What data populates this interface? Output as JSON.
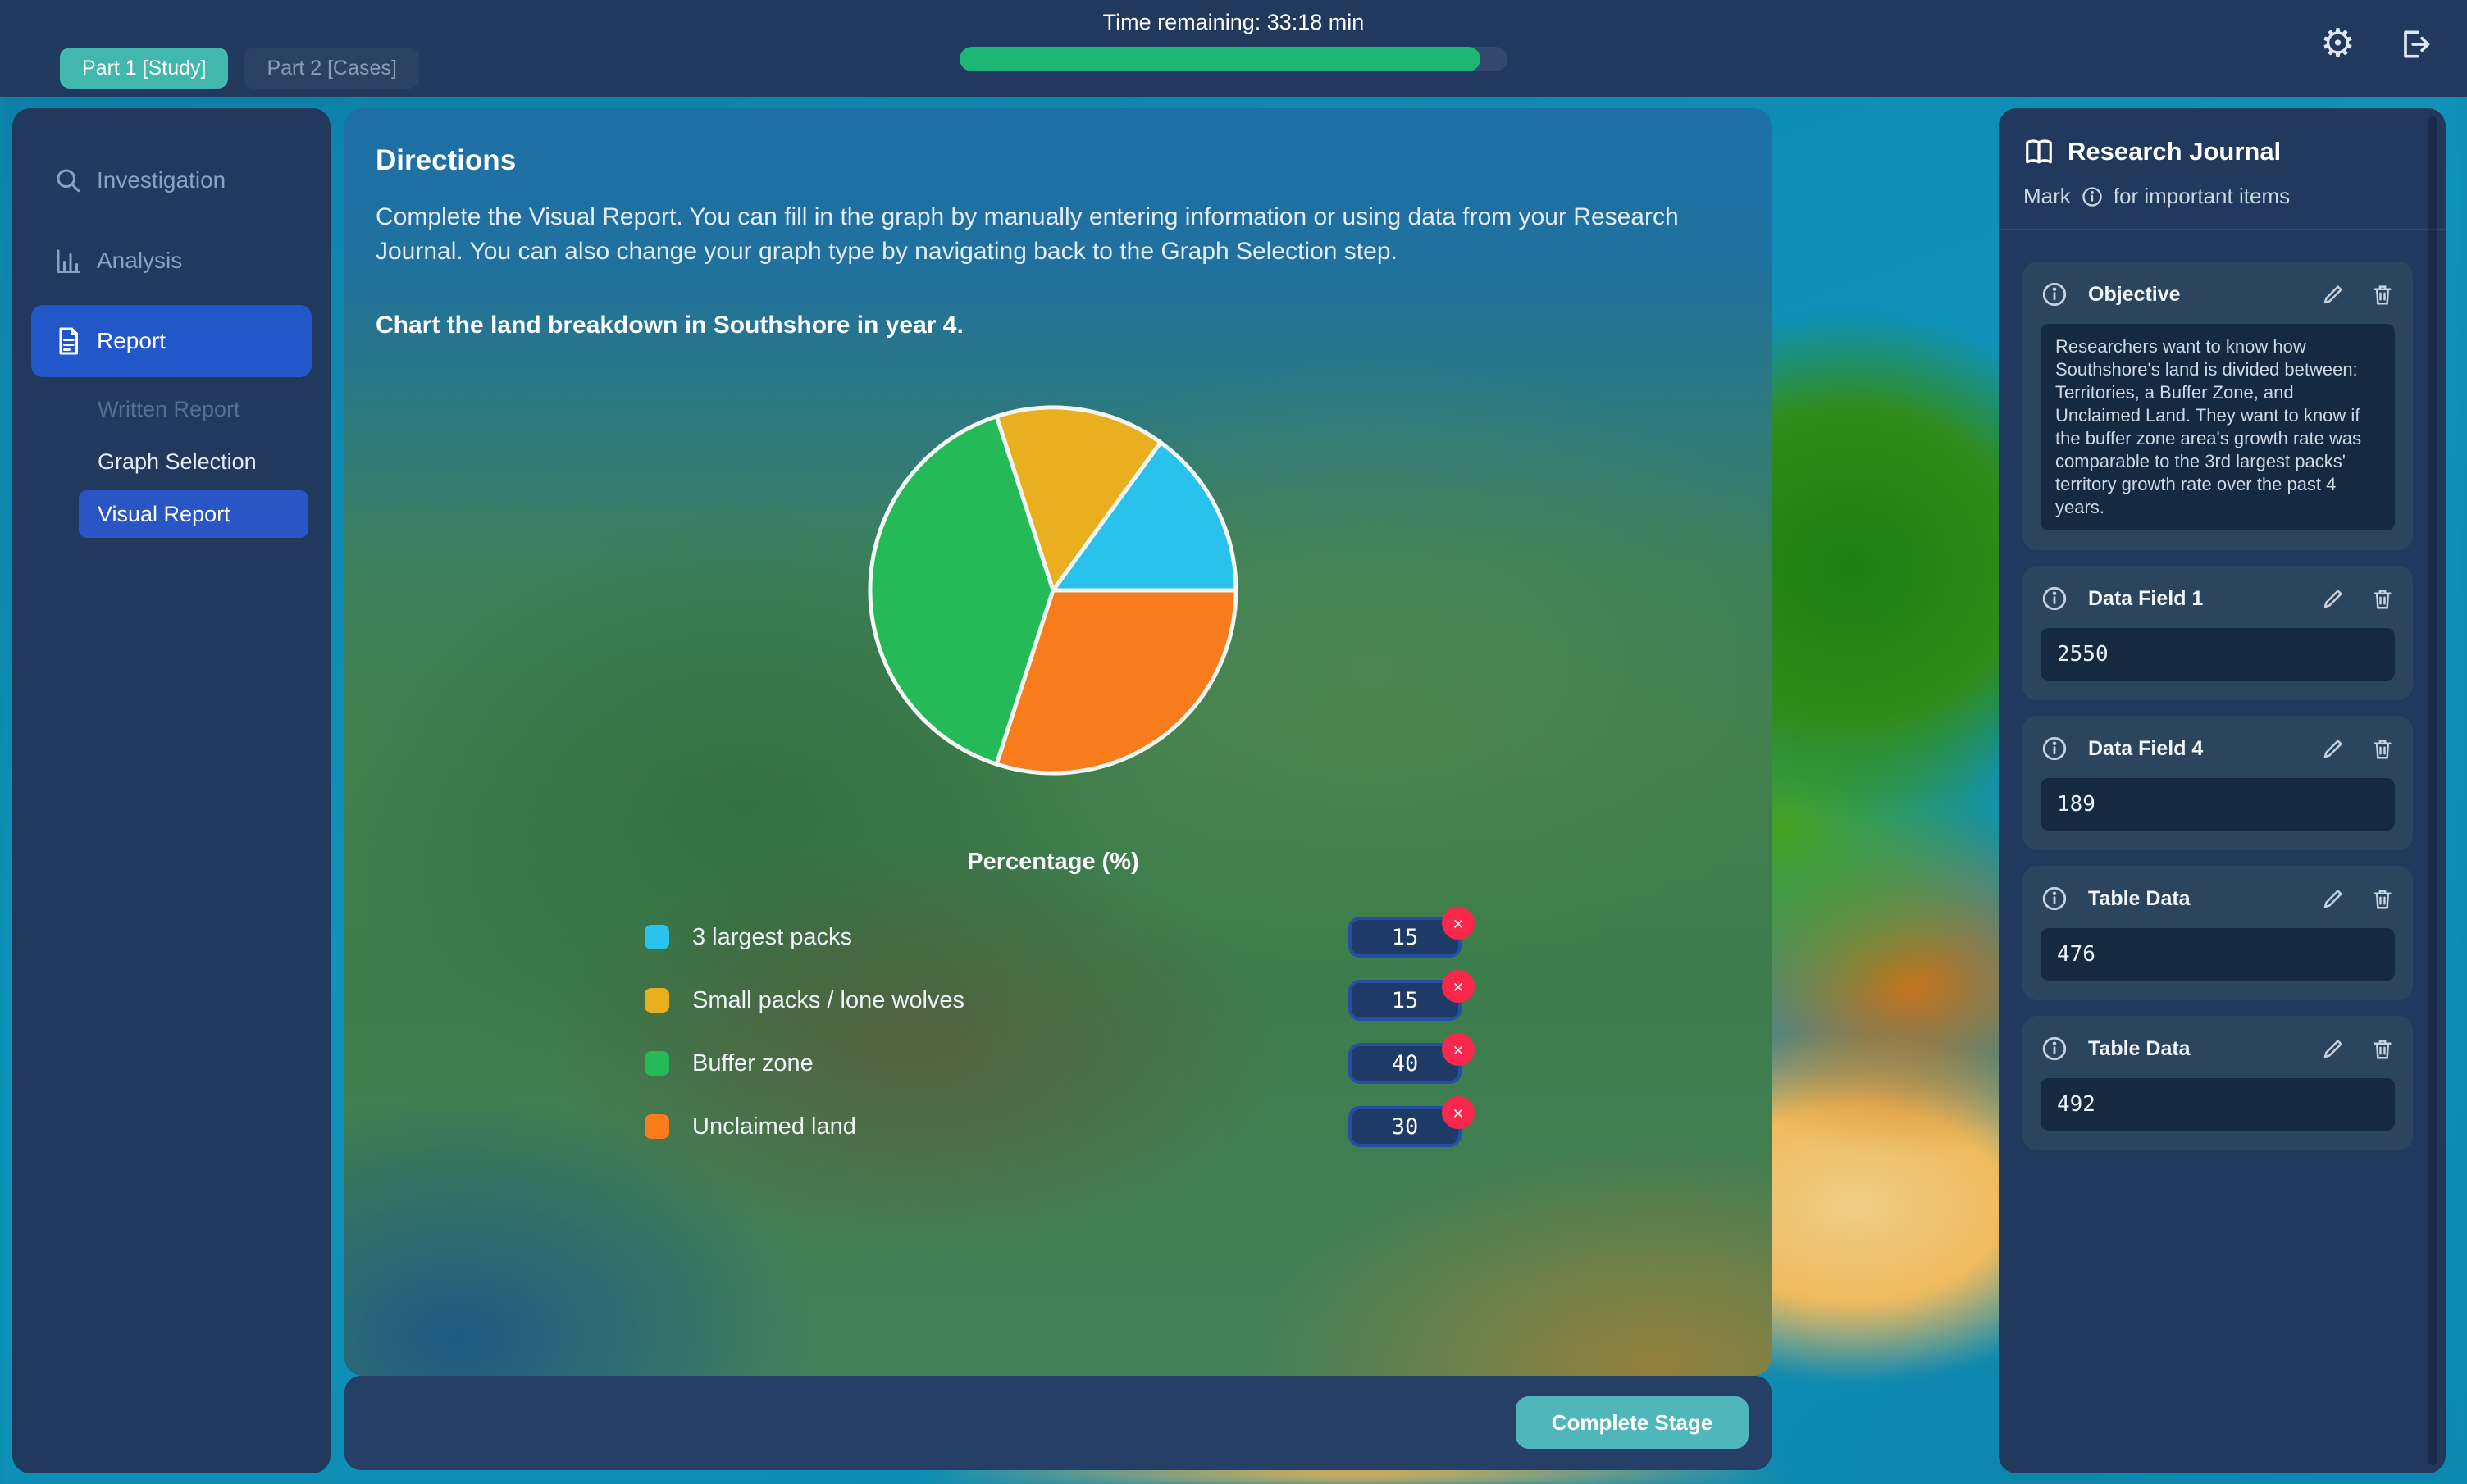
{
  "top_bar": {
    "tabs": [
      {
        "label": "Part 1 [Study]",
        "active": true
      },
      {
        "label": "Part 2 [Cases]",
        "active": false
      }
    ],
    "time_remaining_label": "Time remaining: 33:18 min",
    "progress_percent": 95,
    "gear_glyph": "⚙"
  },
  "sidebar": {
    "items": [
      {
        "label": "Investigation",
        "icon": "search-icon",
        "state": "default"
      },
      {
        "label": "Analysis",
        "icon": "bar-chart-icon",
        "state": "default"
      },
      {
        "label": "Report",
        "icon": "document-icon",
        "state": "active"
      }
    ],
    "sub_items": [
      {
        "label": "Written Report",
        "state": "disabled"
      },
      {
        "label": "Graph Selection",
        "state": "default"
      },
      {
        "label": "Visual Report",
        "state": "active"
      }
    ]
  },
  "main": {
    "directions_title": "Directions",
    "directions_body": "Complete the Visual Report. You can fill in the graph by manually entering information or using data from your Research Journal. You can also change your graph type by navigating back to the Graph Selection step.",
    "task": "Chart the land breakdown in Southshore in year 4.",
    "footer": {
      "complete_button": "Complete Stage"
    }
  },
  "chart_data": {
    "type": "pie",
    "title": "Percentage (%)",
    "categories": [
      "3 largest packs",
      "Small packs / lone wolves",
      "Buffer zone",
      "Unclaimed land"
    ],
    "values": [
      15,
      15,
      40,
      30
    ],
    "colors": [
      "#29c2ec",
      "#eaaf1e",
      "#25ba58",
      "#f97c1c"
    ],
    "units": "percent",
    "total": 100,
    "start_angle_deg": 0,
    "direction": "counterclockwise",
    "legend_position": "bottom",
    "slice_border_color": "#f3f7f4"
  },
  "legend": {
    "delete_glyph": "✕"
  },
  "journal": {
    "title": "Research Journal",
    "subtitle_prefix": "Mark",
    "subtitle_suffix": "for important items",
    "cards": [
      {
        "title": "Objective",
        "value": "Researchers want to know how Southshore's land is divided between: Territories, a Buffer Zone, and Unclaimed Land. They want to know if the buffer zone area's growth rate was comparable to the 3rd largest packs' territory growth rate over the past 4 years.",
        "type": "text"
      },
      {
        "title": "Data Field 1",
        "value": "2550",
        "type": "number"
      },
      {
        "title": "Data Field 4",
        "value": "189",
        "type": "number"
      },
      {
        "title": "Table Data",
        "value": "476",
        "type": "number"
      },
      {
        "title": "Table Data",
        "value": "492",
        "type": "number"
      }
    ]
  },
  "colors": {
    "accent_teal": "#41b7ae",
    "accent_blue": "#2257c9",
    "progress_green": "#1db674",
    "panel_navy": "#20395c",
    "delete_red": "#f8274b"
  }
}
